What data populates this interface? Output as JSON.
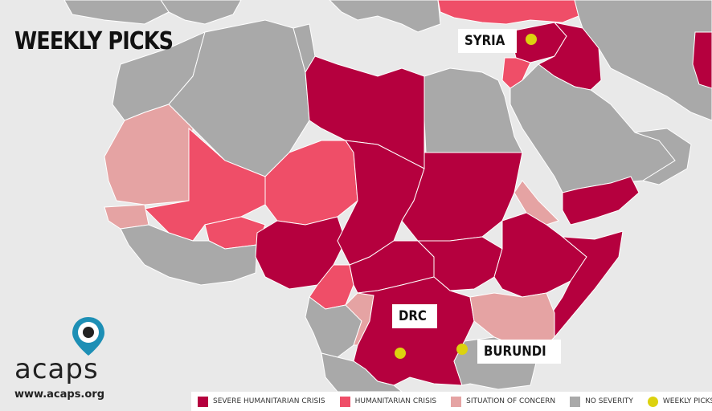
{
  "title": "WEEKLY PICKS",
  "picks": [
    {
      "id": "syria",
      "label": "SYRIA"
    },
    {
      "id": "drc",
      "label": "DRC"
    },
    {
      "id": "burundi",
      "label": "BURUNDI"
    }
  ],
  "logo": {
    "name": "acaps",
    "url": "www.acaps.org"
  },
  "legend": [
    {
      "label": "SEVERE HUMANITARIAN CRISIS",
      "color": "#b5003e"
    },
    {
      "label": "HUMANITARIAN CRISIS",
      "color": "#ef4e68"
    },
    {
      "label": "SITUATION OF CONCERN",
      "color": "#e5a3a3"
    },
    {
      "label": "NO SEVERITY",
      "color": "#a9a9a9"
    },
    {
      "label": "WEEKLY PICKS",
      "color": "#dcd20f"
    }
  ],
  "colors": {
    "sea": "#e9e9e9",
    "severe": "#b5003e",
    "crisis": "#ef4e68",
    "concern": "#e5a3a3",
    "none": "#a9a9a9",
    "pick_dot": "#dcd20f",
    "logo_teal": "#1d8fb5"
  }
}
